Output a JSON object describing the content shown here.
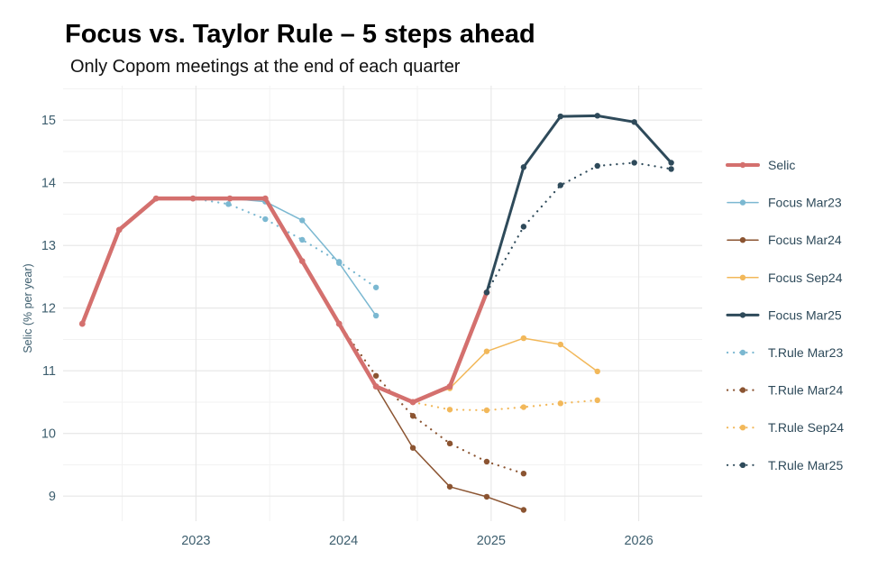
{
  "chart_data": {
    "type": "line",
    "title": "Focus vs. Taylor Rule – 5 steps ahead",
    "subtitle": "Only Copom meetings at the end of each quarter",
    "xlabel": "",
    "ylabel": "Selic (% per year)",
    "xlim": [
      2022.1,
      2026.43
    ],
    "ylim": [
      8.6,
      15.55
    ],
    "x_ticks": [
      2023,
      2024,
      2025,
      2026
    ],
    "x_tick_labels": [
      "2023",
      "2024",
      "2025",
      "2026"
    ],
    "y_ticks": [
      9,
      10,
      11,
      12,
      13,
      14,
      15
    ],
    "y_tick_labels": [
      "9",
      "10",
      "11",
      "12",
      "13",
      "14",
      "15"
    ],
    "grid": true,
    "legend_position": "right",
    "series": [
      {
        "name": "Selic",
        "style": "solid",
        "width": 4.5,
        "color": "#d4706e",
        "x": [
          2022.23,
          2022.48,
          2022.73,
          2022.98,
          2023.23,
          2023.47,
          2023.72,
          2023.97,
          2024.22,
          2024.47,
          2024.72,
          2024.97
        ],
        "y": [
          11.75,
          13.25,
          13.75,
          13.75,
          13.75,
          13.75,
          12.75,
          11.75,
          10.75,
          10.5,
          10.75,
          12.25
        ]
      },
      {
        "name": "Focus Mar23",
        "style": "solid",
        "width": 1.5,
        "color": "#7bb8d1",
        "x": [
          2022.98,
          2023.23,
          2023.47,
          2023.72,
          2023.97,
          2024.22
        ],
        "y": [
          13.75,
          13.75,
          13.7,
          13.4,
          12.72,
          11.88
        ]
      },
      {
        "name": "Focus Mar24",
        "style": "solid",
        "width": 1.5,
        "color": "#8b5431",
        "x": [
          2023.97,
          2024.22,
          2024.47,
          2024.72,
          2024.97,
          2025.22
        ],
        "y": [
          11.75,
          10.75,
          9.77,
          9.15,
          8.99,
          8.78
        ]
      },
      {
        "name": "Focus Sep24",
        "style": "solid",
        "width": 1.5,
        "color": "#f2b85a",
        "x": [
          2024.47,
          2024.72,
          2024.97,
          2025.22,
          2025.47,
          2025.72
        ],
        "y": [
          10.5,
          10.72,
          11.31,
          11.52,
          11.42,
          10.99
        ]
      },
      {
        "name": "Focus Mar25",
        "style": "solid",
        "width": 3,
        "color": "#2e4a5a",
        "x": [
          2024.97,
          2025.22,
          2025.47,
          2025.72,
          2025.97,
          2026.22
        ],
        "y": [
          12.25,
          14.25,
          15.06,
          15.07,
          14.97,
          14.32
        ]
      },
      {
        "name": "T.Rule Mar23",
        "style": "dotted",
        "width": 2.2,
        "color": "#7bb8d1",
        "x": [
          2022.98,
          2023.22,
          2023.47,
          2023.72,
          2023.97,
          2024.22
        ],
        "y": [
          13.75,
          13.66,
          13.42,
          13.09,
          12.74,
          12.33
        ]
      },
      {
        "name": "T.Rule Mar24",
        "style": "dotted",
        "width": 2.2,
        "color": "#8b5431",
        "x": [
          2023.97,
          2024.22,
          2024.47,
          2024.72,
          2024.97,
          2025.22
        ],
        "y": [
          11.75,
          10.92,
          10.28,
          9.84,
          9.55,
          9.36
        ]
      },
      {
        "name": "T.Rule Sep24",
        "style": "dotted",
        "width": 2.2,
        "color": "#f2b85a",
        "x": [
          2024.47,
          2024.72,
          2024.97,
          2025.22,
          2025.47,
          2025.72
        ],
        "y": [
          10.5,
          10.38,
          10.37,
          10.42,
          10.48,
          10.53
        ]
      },
      {
        "name": "T.Rule Mar25",
        "style": "dotted",
        "width": 2.2,
        "color": "#2e4a5a",
        "x": [
          2024.97,
          2025.22,
          2025.47,
          2025.72,
          2025.97,
          2026.22
        ],
        "y": [
          12.25,
          13.3,
          13.96,
          14.27,
          14.32,
          14.22
        ]
      }
    ]
  }
}
